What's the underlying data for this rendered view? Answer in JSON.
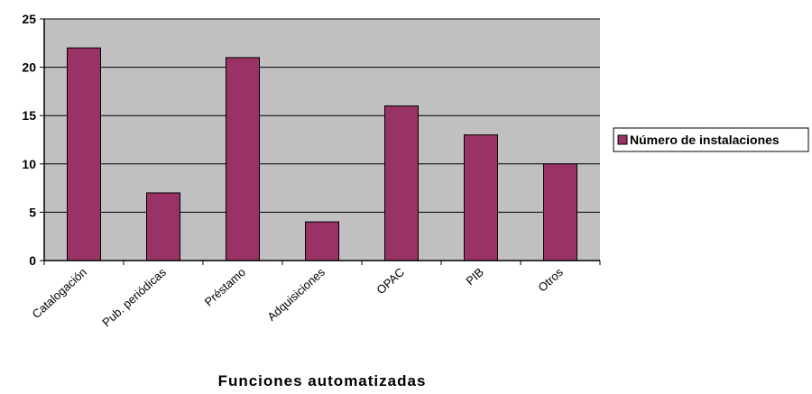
{
  "chart_data": {
    "type": "bar",
    "categories": [
      "Catalogación",
      "Pub. periódicas",
      "Préstamo",
      "Adquisiciones",
      "OPAC",
      "PIB",
      "Otros"
    ],
    "series": [
      {
        "name": "Número de instalaciones",
        "values": [
          22,
          7,
          21,
          4,
          16,
          13,
          10
        ]
      }
    ],
    "title": "",
    "xlabel": "Funciones automatizadas",
    "ylabel": "",
    "ylim": [
      0,
      25
    ],
    "yticks": [
      "0",
      "5",
      "10",
      "15",
      "20",
      "25"
    ],
    "grid": true,
    "legend_position": "right",
    "colors": {
      "bar": "#993366",
      "plot_background": "#c0c0c0",
      "gridline": "#000000"
    }
  }
}
